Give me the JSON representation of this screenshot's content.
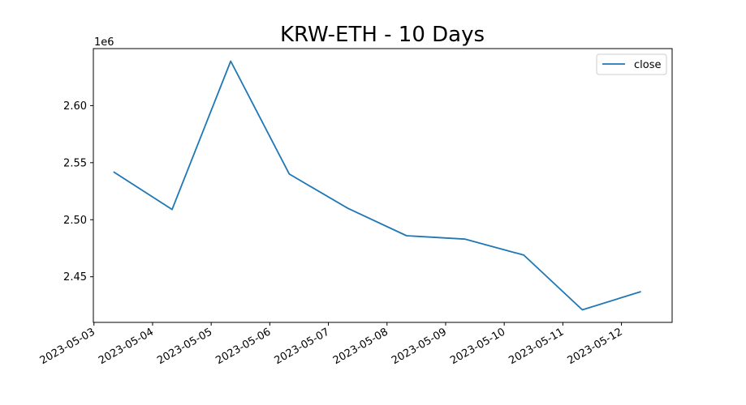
{
  "chart_data": {
    "type": "line",
    "title": "KRW-ETH - 10 Days",
    "xlabel": "",
    "ylabel": "",
    "y_offset_label": "1e6",
    "x": [
      "2023-05-03 08:00",
      "2023-05-04 08:00",
      "2023-05-05 08:00",
      "2023-05-06 08:00",
      "2023-05-07 08:00",
      "2023-05-08 08:00",
      "2023-05-09 08:00",
      "2023-05-10 08:00",
      "2023-05-11 08:00",
      "2023-05-12 08:00"
    ],
    "series": [
      {
        "name": "close",
        "color": "#1f77b4",
        "values": [
          2542000,
          2509000,
          2639000,
          2540000,
          2510000,
          2486000,
          2483000,
          2469000,
          2421000,
          2437000
        ]
      }
    ],
    "xlim": [
      "2023-05-02 23:45",
      "2023-05-12 20:45"
    ],
    "ylim": [
      2410000,
      2650000
    ],
    "x_ticks": [
      "2023-05-03",
      "2023-05-04",
      "2023-05-05",
      "2023-05-06",
      "2023-05-07",
      "2023-05-08",
      "2023-05-09",
      "2023-05-10",
      "2023-05-11",
      "2023-05-12"
    ],
    "y_ticks": [
      2450000,
      2500000,
      2550000,
      2600000
    ],
    "y_tick_labels": [
      "2.45",
      "2.50",
      "2.55",
      "2.60"
    ],
    "legend": "upper right",
    "grid": false
  }
}
